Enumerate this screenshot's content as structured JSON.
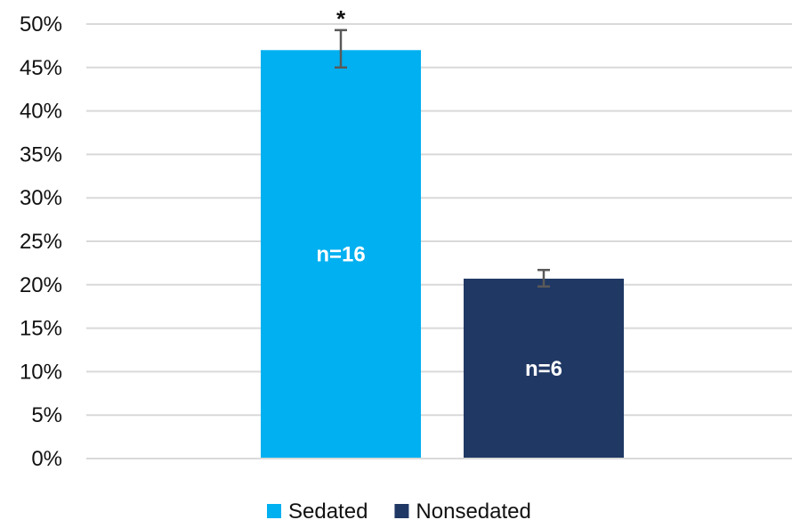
{
  "chart_data": {
    "type": "bar",
    "title": "",
    "xlabel": "",
    "ylabel": "",
    "ylim": [
      0,
      50
    ],
    "yticks": [
      "0%",
      "5%",
      "10%",
      "15%",
      "20%",
      "25%",
      "30%",
      "35%",
      "40%",
      "45%",
      "50%"
    ],
    "grid": true,
    "legend_position": "bottom",
    "series": [
      {
        "name": "Sedated",
        "value": 47.0,
        "error_low": 45.0,
        "error_high": 49.3,
        "bar_label": "n=16",
        "annotation": "*",
        "color": "#00b0f0"
      },
      {
        "name": "Nonsedated",
        "value": 20.7,
        "error_low": 19.8,
        "error_high": 21.7,
        "bar_label": "n=6",
        "annotation": "",
        "color": "#203864"
      }
    ]
  }
}
